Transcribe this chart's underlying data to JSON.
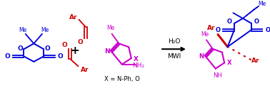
{
  "background_color": "#ffffff",
  "figsize": [
    3.78,
    1.24
  ],
  "dpi": 100,
  "blue_color": "#0000dd",
  "red_color": "#cc0000",
  "purple_color": "#cc00cc",
  "black_color": "#000000",
  "arrow_color": "#000000",
  "h2o_text": "H₂O",
  "mwi_text": "MWI",
  "x_label_text": "X = N-Ph, O"
}
